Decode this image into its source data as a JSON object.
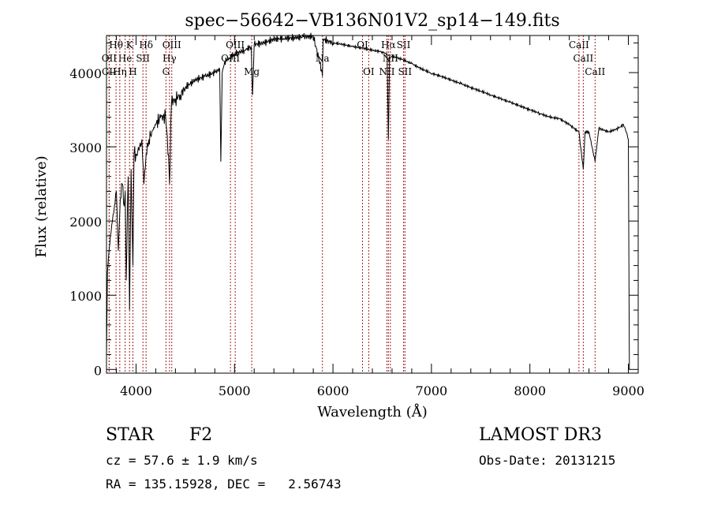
{
  "chart_data": {
    "type": "line",
    "title": "spec−56642−VB136N01V2_sp14−149.fits",
    "xlabel": "Wavelength (Å)",
    "ylabel": "Flux (relative)",
    "xlim": [
      3700,
      9100
    ],
    "ylim": [
      -50,
      4500
    ],
    "x_ticks": [
      {
        "value": 4000,
        "label": "4000"
      },
      {
        "value": 5000,
        "label": "5000"
      },
      {
        "value": 6000,
        "label": "6000"
      },
      {
        "value": 7000,
        "label": "7000"
      },
      {
        "value": 8000,
        "label": "8000"
      },
      {
        "value": 9000,
        "label": "9000"
      }
    ],
    "y_ticks": [
      {
        "value": 0,
        "label": "0"
      },
      {
        "value": 1000,
        "label": "1000"
      },
      {
        "value": 2000,
        "label": "2000"
      },
      {
        "value": 3000,
        "label": "3000"
      },
      {
        "value": 4000,
        "label": "4000"
      }
    ],
    "series": [
      {
        "name": "flux",
        "x": [
          3700,
          3710,
          3720,
          3740,
          3760,
          3780,
          3800,
          3820,
          3840,
          3860,
          3880,
          3890,
          3900,
          3920,
          3934,
          3950,
          3968,
          3980,
          4000,
          4030,
          4060,
          4080,
          4102,
          4130,
          4160,
          4200,
          4250,
          4300,
          4330,
          4340,
          4360,
          4400,
          4450,
          4500,
          4600,
          4700,
          4800,
          4850,
          4861,
          4875,
          4900,
          4950,
          5000,
          5100,
          5170,
          5183,
          5200,
          5300,
          5400,
          5500,
          5600,
          5700,
          5800,
          5890,
          5893,
          5900,
          6000,
          6100,
          6200,
          6300,
          6400,
          6500,
          6550,
          6563,
          6575,
          6600,
          6650,
          6700,
          6800,
          6900,
          7000,
          7100,
          7200,
          7300,
          7400,
          7500,
          7600,
          7700,
          7800,
          7900,
          8000,
          8100,
          8200,
          8300,
          8400,
          8498,
          8542,
          8560,
          8600,
          8662,
          8700,
          8800,
          8900,
          8950,
          8980,
          9000,
          9010
        ],
        "y": [
          200,
          1300,
          1500,
          1800,
          2000,
          2200,
          2400,
          1600,
          2300,
          2500,
          2200,
          2400,
          1200,
          2600,
          800,
          2700,
          1400,
          2900,
          2900,
          2950,
          3100,
          2500,
          2900,
          3100,
          3200,
          3300,
          3400,
          3400,
          2900,
          2500,
          3600,
          3650,
          3700,
          3800,
          3900,
          3950,
          4000,
          4050,
          2800,
          4000,
          4150,
          4200,
          4250,
          4300,
          4350,
          3700,
          4380,
          4400,
          4450,
          4460,
          4470,
          4480,
          4490,
          4000,
          3950,
          4450,
          4400,
          4380,
          4350,
          4330,
          4300,
          4280,
          4250,
          3100,
          4200,
          4220,
          4200,
          4180,
          4120,
          4050,
          3990,
          3950,
          3900,
          3850,
          3800,
          3750,
          3700,
          3650,
          3600,
          3550,
          3500,
          3450,
          3400,
          3380,
          3300,
          3200,
          2700,
          3200,
          3200,
          2800,
          3250,
          3200,
          3250,
          3300,
          3200,
          3100,
          0
        ]
      }
    ],
    "lines": [
      {
        "label": "Hθ",
        "wave": 3797,
        "row": 0
      },
      {
        "label": "K",
        "wave": 3934,
        "row": 0
      },
      {
        "label": "Hδ",
        "wave": 4102,
        "row": 0
      },
      {
        "label": "OIII",
        "wave": 4363,
        "row": 0
      },
      {
        "label": "OIII",
        "wave": 5007,
        "row": 0
      },
      {
        "label": "Na",
        "wave": 5893,
        "row": 1
      },
      {
        "label": "OI",
        "wave": 6300,
        "row": 0
      },
      {
        "label": "Hα",
        "wave": 6563,
        "row": 0
      },
      {
        "label": "SII",
        "wave": 6717,
        "row": 0
      },
      {
        "label": "CaII",
        "wave": 8498,
        "row": 0
      },
      {
        "label": "CaII",
        "wave": 8542,
        "row": 1
      },
      {
        "label": "CaII",
        "wave": 8662,
        "row": 2
      },
      {
        "label": "OII",
        "wave": 3727,
        "row": 1
      },
      {
        "label": "He",
        "wave": 3889,
        "row": 1
      },
      {
        "label": "SII",
        "wave": 4070,
        "row": 1
      },
      {
        "label": "Hγ",
        "wave": 4340,
        "row": 1
      },
      {
        "label": "OIII",
        "wave": 4959,
        "row": 1
      },
      {
        "label": "NII",
        "wave": 6583,
        "row": 1
      },
      {
        "label": "CII",
        "wave": 3727,
        "row": 2
      },
      {
        "label": "Hη",
        "wave": 3835,
        "row": 2
      },
      {
        "label": "H",
        "wave": 3968,
        "row": 2
      },
      {
        "label": "G",
        "wave": 4304,
        "row": 2
      },
      {
        "label": "Mg",
        "wave": 5175,
        "row": 2
      },
      {
        "label": "OI",
        "wave": 6363,
        "row": 2
      },
      {
        "label": "NII",
        "wave": 6548,
        "row": 2
      },
      {
        "label": "SII",
        "wave": 6731,
        "row": 2
      }
    ]
  },
  "info": {
    "class_label": "STAR",
    "subclass": "F2",
    "survey": "LAMOST DR3",
    "cz": "cz = 57.6 ± 1.9 km/s",
    "obs_date": "Obs-Date: 20131215",
    "coords": "RA = 135.15928, DEC =   2.56743"
  }
}
